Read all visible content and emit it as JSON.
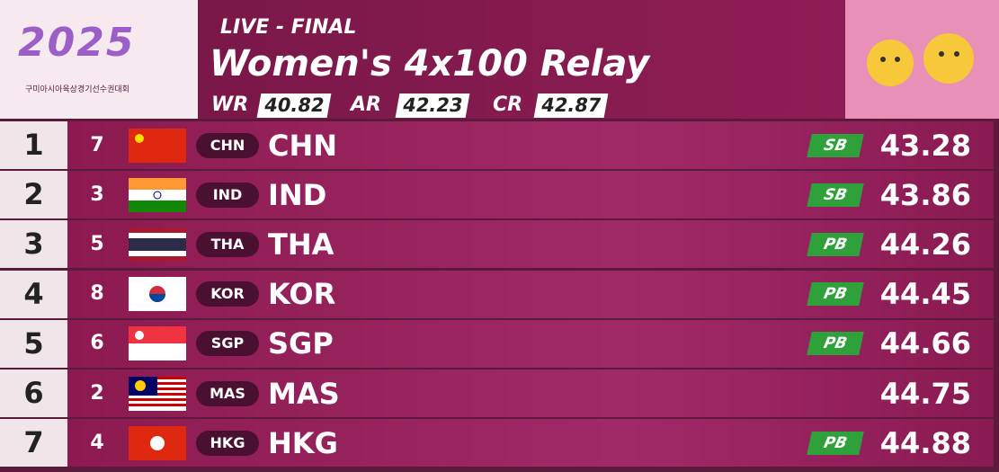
{
  "header": {
    "logo_year": "2025",
    "logo_subtitle": "구미아시아육상경기선수권대회",
    "status": "LIVE - FINAL",
    "event": "Women's 4x100 Relay",
    "records": [
      {
        "label": "WR",
        "time": "40.82"
      },
      {
        "label": "AR",
        "time": "42.23"
      },
      {
        "label": "CR",
        "time": "42.87"
      }
    ]
  },
  "results": [
    {
      "rank": "1",
      "lane": "7",
      "code": "CHN",
      "country": "CHN",
      "note": "SB",
      "time": "43.28"
    },
    {
      "rank": "2",
      "lane": "3",
      "code": "IND",
      "country": "IND",
      "note": "SB",
      "time": "43.86"
    },
    {
      "rank": "3",
      "lane": "5",
      "code": "THA",
      "country": "THA",
      "note": "PB",
      "time": "44.26"
    },
    {
      "rank": "4",
      "lane": "8",
      "code": "KOR",
      "country": "KOR",
      "note": "PB",
      "time": "44.45"
    },
    {
      "rank": "5",
      "lane": "6",
      "code": "SGP",
      "country": "SGP",
      "note": "PB",
      "time": "44.66"
    },
    {
      "rank": "6",
      "lane": "2",
      "code": "MAS",
      "country": "MAS",
      "time": "44.75"
    },
    {
      "rank": "7",
      "lane": "4",
      "code": "HKG",
      "country": "HKG",
      "note": "PB",
      "time": "44.88"
    }
  ]
}
